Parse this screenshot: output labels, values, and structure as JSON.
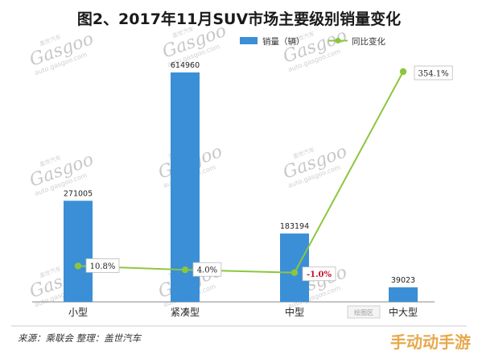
{
  "chart_data": {
    "type": "bar",
    "title": "图2、2017年11月SUV市场主要级别销量变化",
    "categories": [
      "小型",
      "紧凑型",
      "中型",
      "中大型"
    ],
    "series": [
      {
        "name": "销量（辆）",
        "kind": "bar",
        "values": [
          271005,
          614960,
          183194,
          39023
        ],
        "labels": [
          "271005",
          "614960",
          "183194",
          "39023"
        ],
        "color": "#3a8fd6"
      },
      {
        "name": "同比变化",
        "kind": "line",
        "values": [
          10.8,
          4.0,
          -1.0,
          354.1
        ],
        "labels": [
          "10.8%",
          "4.0%",
          "-1.0%",
          "354.1%"
        ],
        "color": "#8cc63f"
      }
    ],
    "ylim": [
      0,
      700000
    ],
    "y2lim": [
      -60,
      400
    ],
    "legend": "top-right",
    "grid": false
  },
  "footer": {
    "source": "来源：乘联会   整理：盖世汽车",
    "plot_area_tag": "绘图区",
    "corner_watermark": "手动动手游"
  },
  "watermark": {
    "logo": "Gasgoo",
    "site": "auto.gasgoo.com",
    "brand_cn": "盖世汽车"
  }
}
